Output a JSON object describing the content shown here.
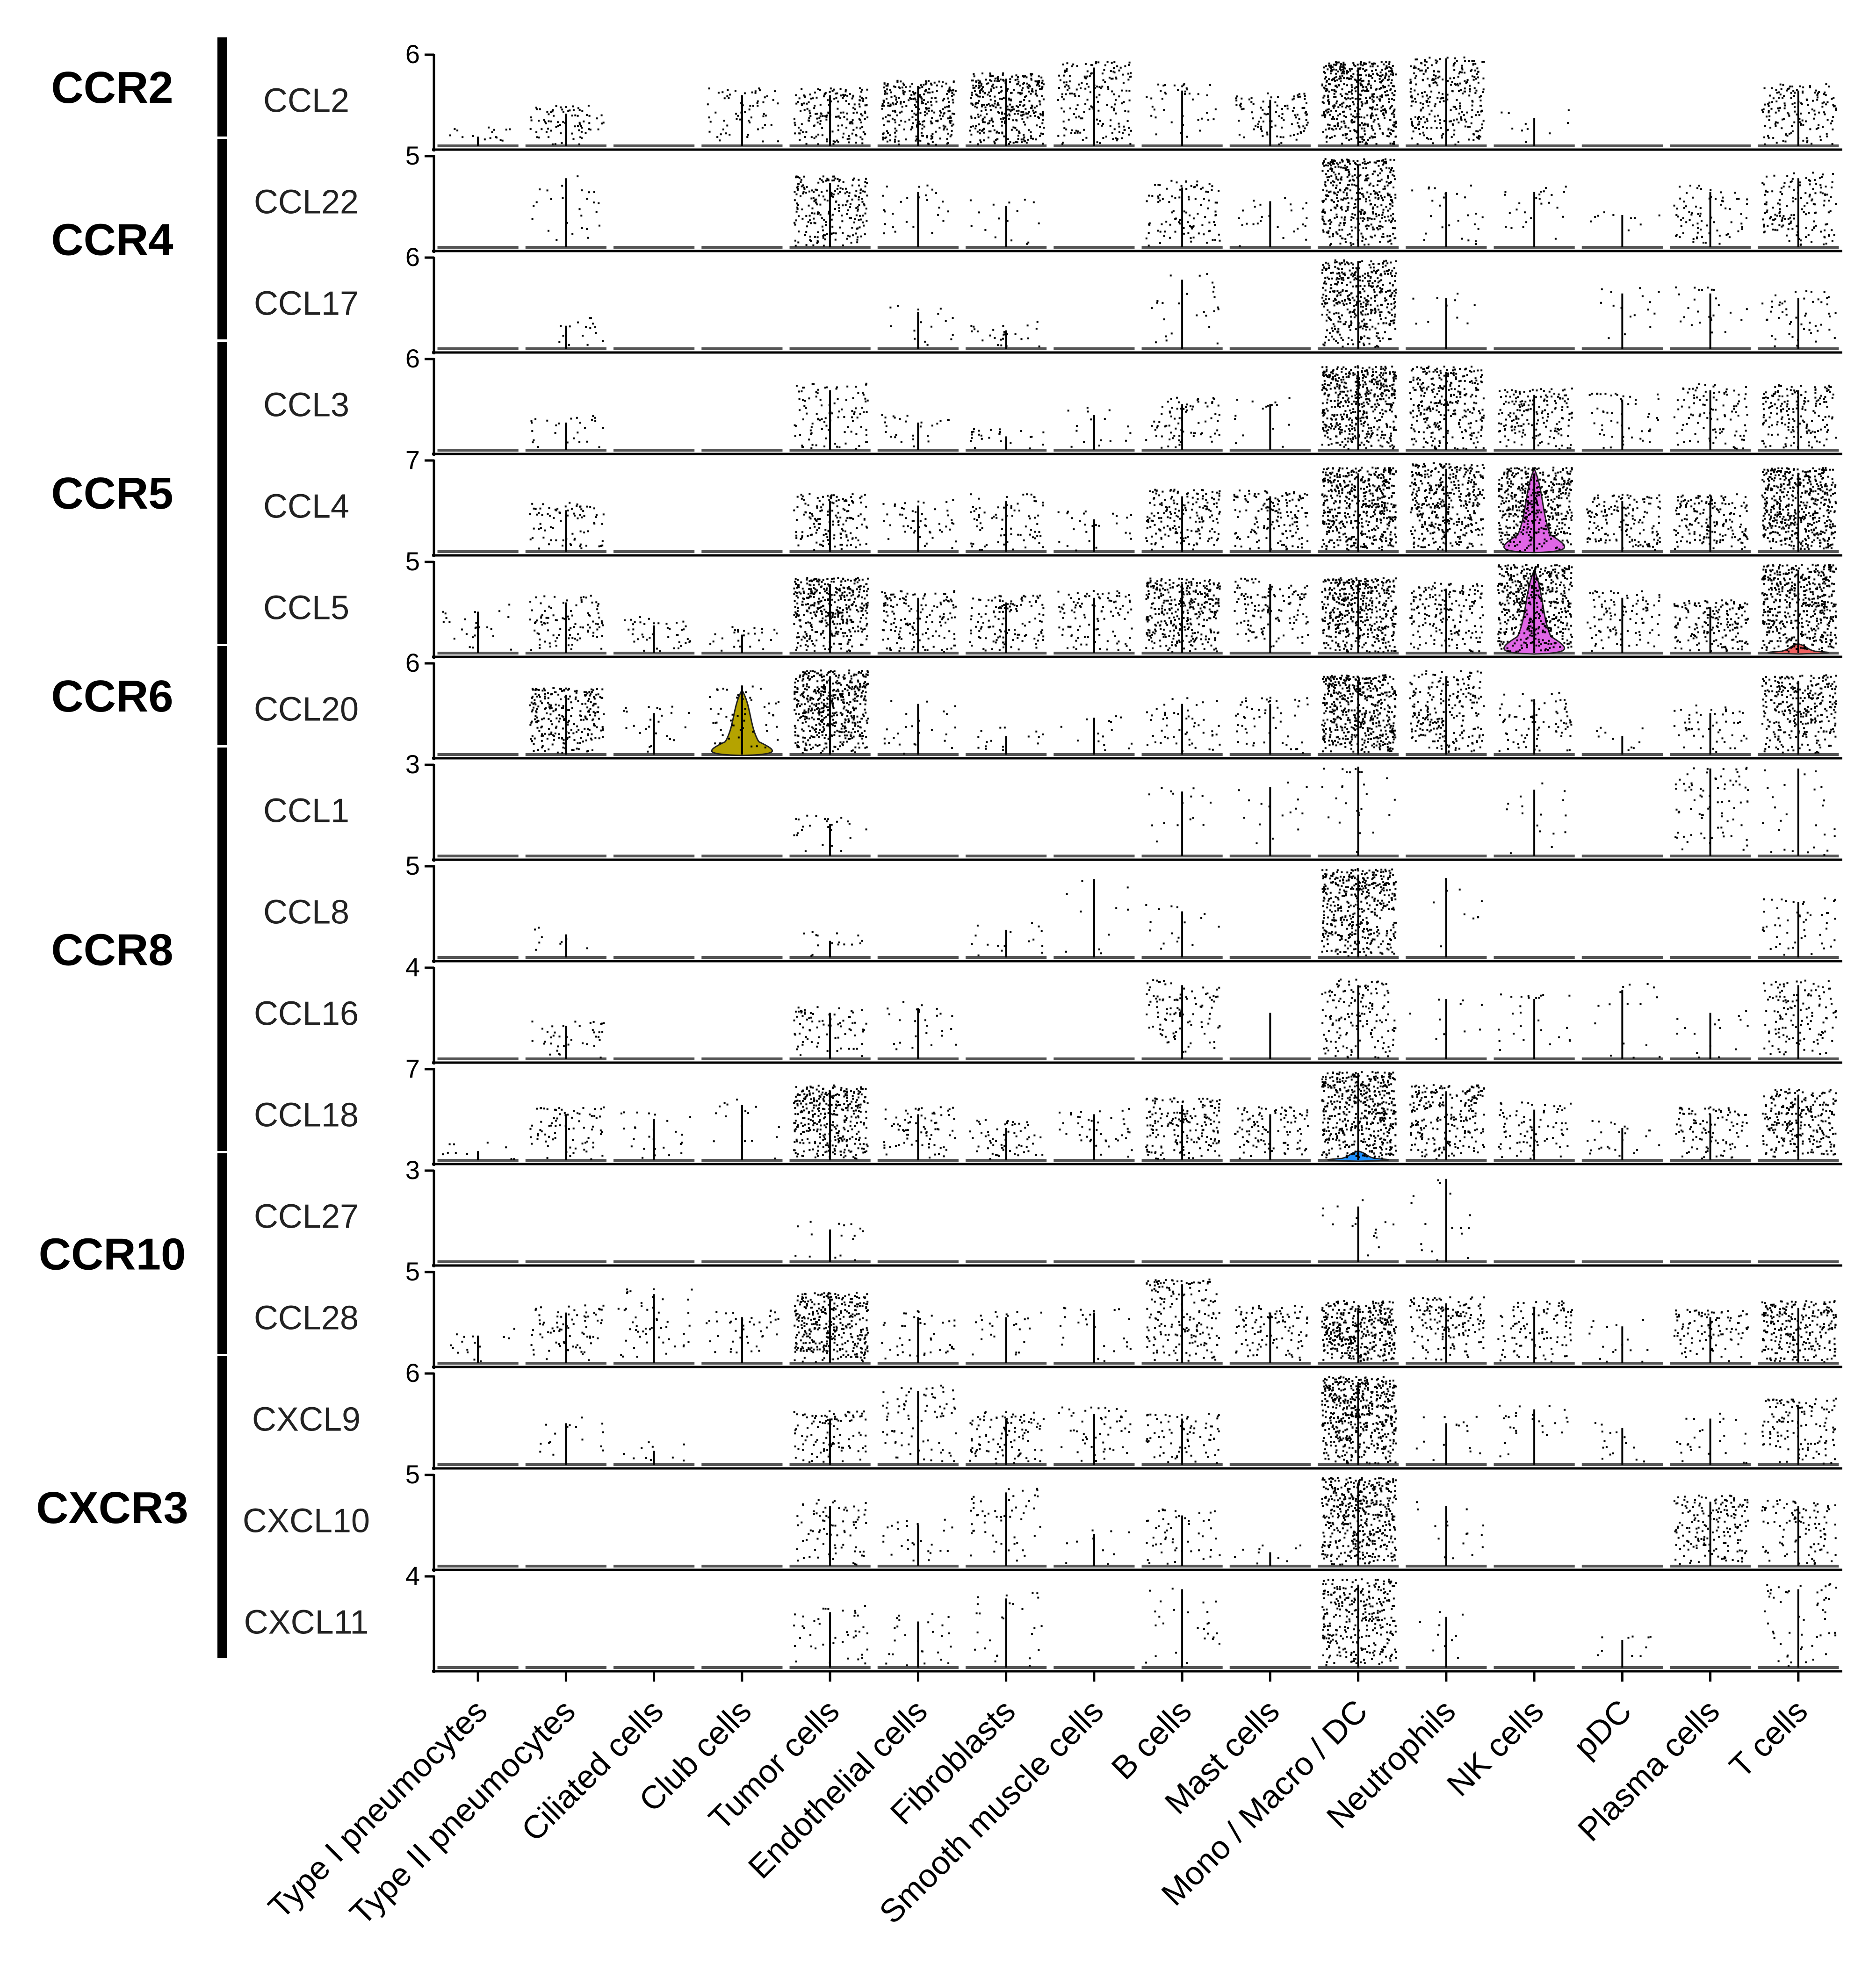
{
  "chart_data": {
    "type": "violin",
    "description_axis": "stacked violin plot of chemokine expression per cell type",
    "categories": [
      "Type I pneumocytes",
      "Type II pneumocytes",
      "Ciliated cells",
      "Club cells",
      "Tumor cells",
      "Endothelial cells",
      "Fibroblasts",
      "Smooth muscle cells",
      "B cells",
      "Mast cells",
      "Mono / Macro / DC",
      "Neutrophils",
      "NK cells",
      "pDC",
      "Plasma cells",
      "T cells"
    ],
    "receptor_groups": [
      {
        "receptor": "CCR2",
        "genes": [
          "CCL2"
        ]
      },
      {
        "receptor": "CCR4",
        "genes": [
          "CCL22",
          "CCL17"
        ]
      },
      {
        "receptor": "CCR5",
        "genes": [
          "CCL3",
          "CCL4",
          "CCL5"
        ]
      },
      {
        "receptor": "CCR6",
        "genes": [
          "CCL20"
        ]
      },
      {
        "receptor": "CCR8",
        "genes": [
          "CCL1",
          "CCL8",
          "CCL16",
          "CCL18"
        ]
      },
      {
        "receptor": "CCR10",
        "genes": [
          "CCL27",
          "CCL28"
        ]
      },
      {
        "receptor": "CXCR3",
        "genes": [
          "CXCL9",
          "CXCL10",
          "CXCL11"
        ]
      }
    ],
    "series": [
      {
        "name": "CCL2",
        "ymax": 6,
        "ymax_label": "6",
        "density": [
          0.03,
          0.15,
          0,
          0.12,
          0.35,
          0.55,
          0.7,
          0.35,
          0.08,
          0.2,
          1.0,
          0.55,
          0.02,
          0,
          0,
          0.3
        ],
        "spike": [
          0.1,
          0.35,
          0,
          0.55,
          0.55,
          0.65,
          0.72,
          0.85,
          0.6,
          0.5,
          0.85,
          0.95,
          0.3,
          0,
          0,
          0.6
        ]
      },
      {
        "name": "CCL22",
        "ymax": 5,
        "ymax_label": "5",
        "density": [
          0,
          0.05,
          0,
          0,
          0.45,
          0.05,
          0.03,
          0,
          0.2,
          0.05,
          0.85,
          0.05,
          0.05,
          0.02,
          0.15,
          0.3
        ],
        "spike": [
          0,
          0.75,
          0,
          0,
          0.7,
          0.6,
          0.45,
          0,
          0.65,
          0.5,
          0.9,
          0.6,
          0.6,
          0.35,
          0.6,
          0.75
        ]
      },
      {
        "name": "CCL17",
        "ymax": 6,
        "ymax_label": "6",
        "density": [
          0,
          0.03,
          0,
          0,
          0,
          0.03,
          0.05,
          0,
          0.05,
          0,
          0.85,
          0.02,
          0,
          0.03,
          0.05,
          0.1
        ],
        "spike": [
          0,
          0.25,
          0,
          0,
          0,
          0.4,
          0.2,
          0,
          0.75,
          0,
          0.95,
          0.55,
          0,
          0.6,
          0.6,
          0.55
        ]
      },
      {
        "name": "CCL3",
        "ymax": 6,
        "ymax_label": "6",
        "density": [
          0,
          0.05,
          0,
          0,
          0.2,
          0.05,
          0.05,
          0.03,
          0.15,
          0.03,
          1.0,
          0.6,
          0.35,
          0.1,
          0.2,
          0.35
        ],
        "spike": [
          0,
          0.3,
          0,
          0,
          0.65,
          0.3,
          0.15,
          0.38,
          0.5,
          0.5,
          0.85,
          0.85,
          0.6,
          0.55,
          0.65,
          0.65
        ]
      },
      {
        "name": "CCL4",
        "ymax": 7,
        "ymax_label": "7",
        "density": [
          0,
          0.15,
          0,
          0,
          0.3,
          0.1,
          0.15,
          0.05,
          0.35,
          0.3,
          1.0,
          0.8,
          0.9,
          0.3,
          0.35,
          1.0
        ],
        "spike": [
          0,
          0.45,
          0,
          0,
          0.55,
          0.5,
          0.55,
          0.35,
          0.6,
          0.6,
          0.85,
          0.9,
          0.85,
          0.55,
          0.55,
          0.85
        ]
      },
      {
        "name": "CCL5",
        "ymax": 5,
        "ymax_label": "5",
        "density": [
          0.05,
          0.2,
          0.08,
          0.05,
          0.8,
          0.3,
          0.25,
          0.2,
          0.7,
          0.25,
          0.9,
          0.35,
          1.0,
          0.2,
          0.35,
          1.0
        ],
        "spike": [
          0.45,
          0.55,
          0.3,
          0.2,
          0.75,
          0.6,
          0.55,
          0.6,
          0.75,
          0.75,
          0.75,
          0.7,
          0.9,
          0.6,
          0.5,
          0.9
        ]
      },
      {
        "name": "CCL20",
        "ymax": 6,
        "ymax_label": "6",
        "density": [
          0,
          0.5,
          0.05,
          0.1,
          1.0,
          0.05,
          0.03,
          0.03,
          0.1,
          0.1,
          1.0,
          0.45,
          0.15,
          0.02,
          0.1,
          0.6
        ],
        "spike": [
          0,
          0.65,
          0.45,
          0.75,
          0.85,
          0.55,
          0.2,
          0.4,
          0.55,
          0.55,
          0.8,
          0.85,
          0.6,
          0.2,
          0.45,
          0.8
        ]
      },
      {
        "name": "CCL1",
        "ymax": 3,
        "ymax_label": "3",
        "density": [
          0,
          0,
          0,
          0,
          0.05,
          0,
          0,
          0,
          0.03,
          0.03,
          0.05,
          0,
          0.03,
          0,
          0.15,
          0.05
        ],
        "spike": [
          0,
          0,
          0,
          0,
          0.35,
          0,
          0,
          0,
          0.7,
          0.75,
          0.97,
          0,
          0.72,
          0,
          0.95,
          0.95
        ]
      },
      {
        "name": "CCL8",
        "ymax": 5,
        "ymax_label": "5",
        "density": [
          0,
          0.02,
          0,
          0,
          0.03,
          0,
          0.03,
          0.02,
          0.03,
          0,
          0.85,
          0.02,
          0,
          0,
          0,
          0.1
        ],
        "spike": [
          0,
          0.25,
          0,
          0,
          0.18,
          0,
          0.3,
          0.85,
          0.5,
          0,
          0.9,
          0.85,
          0,
          0,
          0,
          0.6
        ]
      },
      {
        "name": "CCL16",
        "ymax": 4,
        "ymax_label": "4",
        "density": [
          0,
          0.08,
          0,
          0,
          0.15,
          0.05,
          0,
          0,
          0.2,
          0,
          0.3,
          0.02,
          0.05,
          0.03,
          0.03,
          0.25
        ],
        "spike": [
          0,
          0.35,
          0,
          0,
          0.5,
          0.55,
          0,
          0,
          0.8,
          0.5,
          0.8,
          0.65,
          0.65,
          0.75,
          0.5,
          0.8
        ]
      },
      {
        "name": "CCL18",
        "ymax": 7,
        "ymax_label": "7",
        "density": [
          0.02,
          0.15,
          0.05,
          0.03,
          0.7,
          0.15,
          0.12,
          0.08,
          0.35,
          0.2,
          1.0,
          0.45,
          0.15,
          0.05,
          0.2,
          0.5
        ],
        "spike": [
          0.1,
          0.5,
          0.45,
          0.6,
          0.75,
          0.5,
          0.35,
          0.5,
          0.6,
          0.5,
          0.95,
          0.75,
          0.55,
          0.35,
          0.5,
          0.7
        ]
      },
      {
        "name": "CCL27",
        "ymax": 3,
        "ymax_label": "3",
        "density": [
          0,
          0,
          0,
          0,
          0.03,
          0,
          0,
          0,
          0,
          0,
          0.03,
          0.03,
          0,
          0,
          0,
          0
        ],
        "spike": [
          0,
          0,
          0,
          0,
          0.35,
          0,
          0,
          0,
          0,
          0,
          0.6,
          0.9,
          0,
          0,
          0,
          0
        ]
      },
      {
        "name": "CCL28",
        "ymax": 5,
        "ymax_label": "5",
        "density": [
          0.03,
          0.15,
          0.1,
          0.08,
          0.7,
          0.08,
          0.05,
          0.05,
          0.35,
          0.2,
          0.75,
          0.3,
          0.2,
          0.03,
          0.2,
          0.5
        ],
        "spike": [
          0.3,
          0.55,
          0.75,
          0.5,
          0.7,
          0.5,
          0.5,
          0.55,
          0.85,
          0.55,
          0.6,
          0.65,
          0.6,
          0.4,
          0.5,
          0.6
        ]
      },
      {
        "name": "CXCL9",
        "ymax": 6,
        "ymax_label": "6",
        "density": [
          0,
          0.03,
          0.02,
          0,
          0.2,
          0.15,
          0.2,
          0.1,
          0.15,
          0,
          1.0,
          0.03,
          0.05,
          0.03,
          0.05,
          0.25
        ],
        "spike": [
          0,
          0.45,
          0.15,
          0,
          0.5,
          0.8,
          0.5,
          0.55,
          0.5,
          0,
          0.9,
          0.45,
          0.6,
          0.4,
          0.5,
          0.65
        ]
      },
      {
        "name": "CXCL10",
        "ymax": 5,
        "ymax_label": "5",
        "density": [
          0,
          0,
          0,
          0,
          0.15,
          0.05,
          0.1,
          0.02,
          0.1,
          0.02,
          0.9,
          0.03,
          0,
          0,
          0.35,
          0.2
        ],
        "spike": [
          0,
          0,
          0,
          0,
          0.65,
          0.45,
          0.8,
          0.35,
          0.55,
          0.15,
          0.9,
          0.65,
          0,
          0,
          0.7,
          0.65
        ]
      },
      {
        "name": "CXCL11",
        "ymax": 4,
        "ymax_label": "4",
        "density": [
          0,
          0,
          0,
          0,
          0.08,
          0.05,
          0.05,
          0,
          0.05,
          0,
          0.6,
          0.02,
          0,
          0.02,
          0,
          0.1
        ],
        "spike": [
          0,
          0,
          0,
          0,
          0.6,
          0.5,
          0.75,
          0,
          0.85,
          0,
          0.9,
          0.55,
          0,
          0.3,
          0,
          0.85
        ]
      }
    ],
    "violins": [
      {
        "gene": "CCL4",
        "category": "NK cells",
        "color": "#e066e6",
        "height": 0.9
      },
      {
        "gene": "CCL5",
        "category": "NK cells",
        "color": "#e066e6",
        "height": 0.9
      },
      {
        "gene": "CCL5",
        "category": "T cells",
        "color": "#f06060",
        "height": 0.1
      },
      {
        "gene": "CCL20",
        "category": "Club cells",
        "color": "#b5a300",
        "height": 0.7
      },
      {
        "gene": "CCL18",
        "category": "Mono / Macro / DC",
        "color": "#1e90ff",
        "height": 0.1
      }
    ],
    "axis_color": "#000000",
    "dot_color": "#000000"
  }
}
